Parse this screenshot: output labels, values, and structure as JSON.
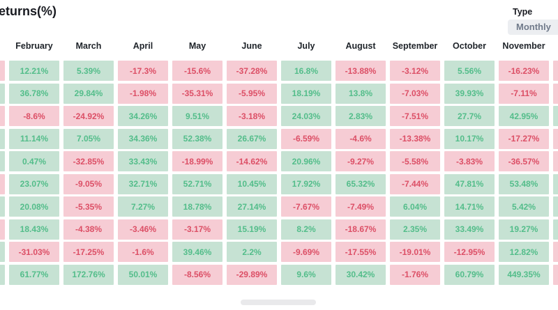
{
  "header": {
    "title": "eturns(%)",
    "type_label": "Type",
    "type_value": "Monthly"
  },
  "colors": {
    "positive_bg": "#c6e2d3",
    "positive_text": "#53bd8a",
    "negative_bg": "#f6ccd4",
    "negative_text": "#dc4f66",
    "select_bg": "#eceef1",
    "select_text": "#707a8a"
  },
  "table": {
    "columns": [
      {
        "key": "january",
        "label": ""
      },
      {
        "key": "february",
        "label": "February"
      },
      {
        "key": "march",
        "label": "March"
      },
      {
        "key": "april",
        "label": "April"
      },
      {
        "key": "may",
        "label": "May"
      },
      {
        "key": "june",
        "label": "June"
      },
      {
        "key": "july",
        "label": "July"
      },
      {
        "key": "august",
        "label": "August"
      },
      {
        "key": "september",
        "label": "September"
      },
      {
        "key": "october",
        "label": "October"
      },
      {
        "key": "november",
        "label": "November"
      },
      {
        "key": "december",
        "label": ""
      }
    ],
    "rows": [
      {
        "cells": [
          "",
          "12.21%",
          "5.39%",
          "-17.3%",
          "-15.6%",
          "-37.28%",
          "16.8%",
          "-13.88%",
          "-3.12%",
          "5.56%",
          "-16.23%",
          ""
        ],
        "signs": [
          "neg",
          "pos",
          "pos",
          "neg",
          "neg",
          "neg",
          "pos",
          "neg",
          "neg",
          "pos",
          "neg",
          "neg"
        ]
      },
      {
        "cells": [
          "",
          "36.78%",
          "29.84%",
          "-1.98%",
          "-35.31%",
          "-5.95%",
          "18.19%",
          "13.8%",
          "-7.03%",
          "39.93%",
          "-7.11%",
          ""
        ],
        "signs": [
          "pos",
          "pos",
          "pos",
          "neg",
          "neg",
          "neg",
          "pos",
          "pos",
          "neg",
          "pos",
          "neg",
          "neg"
        ]
      },
      {
        "cells": [
          "",
          "-8.6%",
          "-24.92%",
          "34.26%",
          "9.51%",
          "-3.18%",
          "24.03%",
          "2.83%",
          "-7.51%",
          "27.7%",
          "42.95%",
          ""
        ],
        "signs": [
          "neg",
          "neg",
          "neg",
          "pos",
          "pos",
          "neg",
          "pos",
          "pos",
          "neg",
          "pos",
          "pos",
          "pos"
        ]
      },
      {
        "cells": [
          "",
          "11.14%",
          "7.05%",
          "34.36%",
          "52.38%",
          "26.67%",
          "-6.59%",
          "-4.6%",
          "-13.38%",
          "10.17%",
          "-17.27%",
          ""
        ],
        "signs": [
          "pos",
          "pos",
          "pos",
          "pos",
          "pos",
          "pos",
          "neg",
          "neg",
          "neg",
          "pos",
          "neg",
          "neg"
        ]
      },
      {
        "cells": [
          "",
          "0.47%",
          "-32.85%",
          "33.43%",
          "-18.99%",
          "-14.62%",
          "20.96%",
          "-9.27%",
          "-5.58%",
          "-3.83%",
          "-36.57%",
          ""
        ],
        "signs": [
          "pos",
          "pos",
          "neg",
          "pos",
          "neg",
          "neg",
          "pos",
          "neg",
          "neg",
          "neg",
          "neg",
          "neg"
        ]
      },
      {
        "cells": [
          "",
          "23.07%",
          "-9.05%",
          "32.71%",
          "52.71%",
          "10.45%",
          "17.92%",
          "65.32%",
          "-7.44%",
          "47.81%",
          "53.48%",
          ""
        ],
        "signs": [
          "neg",
          "pos",
          "neg",
          "pos",
          "pos",
          "pos",
          "pos",
          "pos",
          "neg",
          "pos",
          "pos",
          "pos"
        ]
      },
      {
        "cells": [
          "",
          "20.08%",
          "-5.35%",
          "7.27%",
          "18.78%",
          "27.14%",
          "-7.67%",
          "-7.49%",
          "6.04%",
          "14.71%",
          "5.42%",
          ""
        ],
        "signs": [
          "pos",
          "pos",
          "neg",
          "pos",
          "pos",
          "pos",
          "neg",
          "neg",
          "pos",
          "pos",
          "pos",
          "pos"
        ]
      },
      {
        "cells": [
          "",
          "18.43%",
          "-4.38%",
          "-3.46%",
          "-3.17%",
          "15.19%",
          "8.2%",
          "-18.67%",
          "2.35%",
          "33.49%",
          "19.27%",
          ""
        ],
        "signs": [
          "neg",
          "pos",
          "neg",
          "neg",
          "neg",
          "pos",
          "pos",
          "neg",
          "pos",
          "pos",
          "pos",
          "pos"
        ]
      },
      {
        "cells": [
          "",
          "-31.03%",
          "-17.25%",
          "-1.6%",
          "39.46%",
          "2.2%",
          "-9.69%",
          "-17.55%",
          "-19.01%",
          "-12.95%",
          "12.82%",
          ""
        ],
        "signs": [
          "pos",
          "neg",
          "neg",
          "neg",
          "pos",
          "pos",
          "neg",
          "neg",
          "neg",
          "neg",
          "pos",
          "neg"
        ]
      },
      {
        "cells": [
          "",
          "61.77%",
          "172.76%",
          "50.01%",
          "-8.56%",
          "-29.89%",
          "9.6%",
          "30.42%",
          "-1.76%",
          "60.79%",
          "449.35%",
          ""
        ],
        "signs": [
          "pos",
          "pos",
          "pos",
          "pos",
          "neg",
          "neg",
          "pos",
          "pos",
          "neg",
          "pos",
          "pos",
          "neg"
        ]
      }
    ]
  }
}
